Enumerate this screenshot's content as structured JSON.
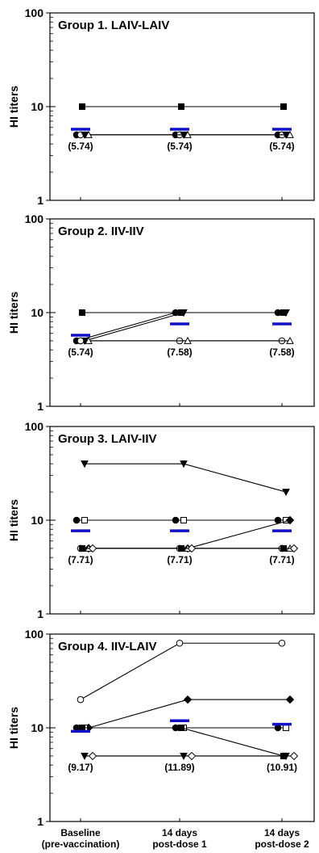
{
  "chart_data": [
    {
      "type": "line",
      "title": "Group 1. LAIV-LAIV",
      "ylabel": "HI titers",
      "yscale": "log",
      "ylim": [
        1,
        100
      ],
      "yticks": [
        "1",
        "10",
        "100"
      ],
      "categories": [
        "Baseline (pre-vaccination)",
        "14 days post-dose 1",
        "14 days post-dose 2"
      ],
      "series": [
        {
          "marker": "filled-square",
          "values": [
            10,
            10,
            10
          ]
        },
        {
          "marker": "filled-circle",
          "values": [
            5,
            5,
            5
          ]
        },
        {
          "marker": "open-circle",
          "values": [
            5,
            5,
            5
          ]
        },
        {
          "marker": "filled-triangle-down",
          "values": [
            5,
            5,
            5
          ]
        },
        {
          "marker": "open-triangle-up",
          "values": [
            5,
            5,
            5
          ]
        }
      ],
      "means": {
        "values": [
          5.74,
          5.74,
          5.74
        ],
        "labels": [
          "(5.74)",
          "(5.74)",
          "(5.74)"
        ],
        "color": "#1010c8"
      }
    },
    {
      "type": "line",
      "title": "Group 2. IIV-IIV",
      "ylabel": "HI titers",
      "yscale": "log",
      "ylim": [
        1,
        100
      ],
      "yticks": [
        "1",
        "10",
        "100"
      ],
      "categories": [
        "Baseline (pre-vaccination)",
        "14 days post-dose 1",
        "14 days post-dose 2"
      ],
      "series": [
        {
          "marker": "filled-square",
          "values": [
            10,
            10,
            10
          ]
        },
        {
          "marker": "filled-circle",
          "values": [
            5,
            10,
            10
          ]
        },
        {
          "marker": "filled-triangle-down",
          "values": [
            5,
            10,
            10
          ]
        },
        {
          "marker": "open-circle",
          "values": [
            5,
            5,
            5
          ]
        },
        {
          "marker": "open-triangle-up",
          "values": [
            5,
            5,
            5
          ]
        }
      ],
      "means": {
        "values": [
          5.74,
          7.58,
          7.58
        ],
        "labels": [
          "(5.74)",
          "(7.58)",
          "(7.58)"
        ],
        "color": "#1010c8"
      }
    },
    {
      "type": "line",
      "title": "Group 3. LAIV-IIV",
      "ylabel": "HI titers",
      "yscale": "log",
      "ylim": [
        1,
        100
      ],
      "yticks": [
        "1",
        "10",
        "100"
      ],
      "categories": [
        "Baseline (pre-vaccination)",
        "14 days post-dose 1",
        "14 days post-dose 2"
      ],
      "series": [
        {
          "marker": "filled-triangle-down",
          "values": [
            40,
            40,
            20
          ]
        },
        {
          "marker": "filled-circle",
          "values": [
            10,
            10,
            10
          ]
        },
        {
          "marker": "open-square",
          "values": [
            10,
            10,
            10
          ]
        },
        {
          "marker": "filled-diamond",
          "values": [
            5,
            5,
            10
          ]
        },
        {
          "marker": "open-circle",
          "values": [
            5,
            5,
            5
          ]
        },
        {
          "marker": "open-triangle-up",
          "values": [
            5,
            5,
            5
          ]
        },
        {
          "marker": "filled-square",
          "values": [
            5,
            5,
            5
          ]
        },
        {
          "marker": "open-diamond",
          "values": [
            5,
            5,
            5
          ]
        }
      ],
      "means": {
        "values": [
          7.71,
          7.71,
          7.71
        ],
        "labels": [
          "(7.71)",
          "(7.71)",
          "(7.71)"
        ],
        "color": "#1010c8"
      }
    },
    {
      "type": "line",
      "title": "Group 4. IIV-LAIV",
      "ylabel": "HI titers",
      "yscale": "log",
      "ylim": [
        1,
        100
      ],
      "yticks": [
        "1",
        "10",
        "100"
      ],
      "categories": [
        "Baseline (pre-vaccination)",
        "14 days post-dose 1",
        "14 days post-dose 2"
      ],
      "series": [
        {
          "marker": "open-circle",
          "values": [
            20,
            80,
            80
          ]
        },
        {
          "marker": "filled-diamond",
          "values": [
            10,
            20,
            20
          ]
        },
        {
          "marker": "filled-circle",
          "values": [
            10,
            10,
            10
          ]
        },
        {
          "marker": "open-square",
          "values": [
            10,
            10,
            10
          ]
        },
        {
          "marker": "filled-square",
          "values": [
            10,
            10,
            5
          ]
        },
        {
          "marker": "filled-triangle-down",
          "values": [
            5,
            5,
            5
          ]
        },
        {
          "marker": "open-diamond",
          "values": [
            5,
            5,
            5
          ]
        }
      ],
      "means": {
        "values": [
          9.17,
          11.89,
          10.91
        ],
        "labels": [
          "(9.17)",
          "(11.89)",
          "(10.91)"
        ],
        "color": "#1010c8"
      }
    }
  ],
  "x_axis": {
    "labels": [
      [
        "Baseline",
        "(pre-vaccination)"
      ],
      [
        "14 days",
        "post-dose 1"
      ],
      [
        "14 days",
        "post-dose 2"
      ]
    ]
  }
}
